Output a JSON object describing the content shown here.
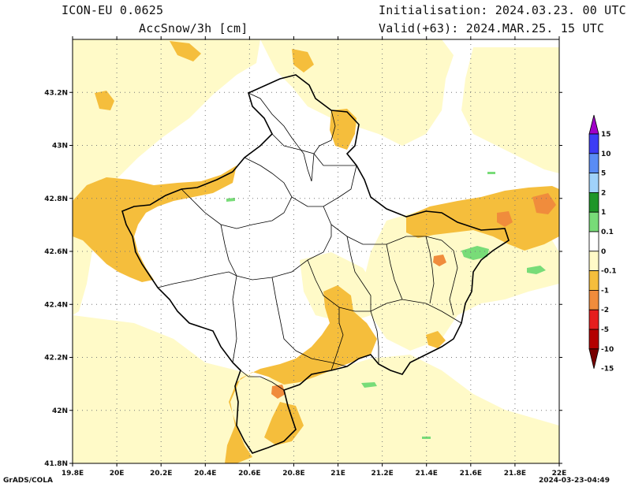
{
  "header": {
    "model": "ICON-EU 0.0625",
    "variable": "AccSnow/3h [cm]",
    "init": "Initialisation: 2024.03.23. 00 UTC",
    "valid": "Valid(+63): 2024.MAR.25. 15 UTC"
  },
  "footer": {
    "left": "GrADS/COLA",
    "right": "2024-03-23-04:49"
  },
  "axes": {
    "x_ticks": [
      {
        "value": 19.8,
        "label": "19.8E"
      },
      {
        "value": 20.0,
        "label": "20E"
      },
      {
        "value": 20.2,
        "label": "20.2E"
      },
      {
        "value": 20.4,
        "label": "20.4E"
      },
      {
        "value": 20.6,
        "label": "20.6E"
      },
      {
        "value": 20.8,
        "label": "20.8E"
      },
      {
        "value": 21.0,
        "label": "21E"
      },
      {
        "value": 21.2,
        "label": "21.2E"
      },
      {
        "value": 21.4,
        "label": "21.4E"
      },
      {
        "value": 21.6,
        "label": "21.6E"
      },
      {
        "value": 21.8,
        "label": "21.8E"
      },
      {
        "value": 22.0,
        "label": "22E"
      }
    ],
    "y_ticks": [
      {
        "value": 41.8,
        "label": "41.8N"
      },
      {
        "value": 42.0,
        "label": "42N"
      },
      {
        "value": 42.2,
        "label": "42.2N"
      },
      {
        "value": 42.4,
        "label": "42.4N"
      },
      {
        "value": 42.6,
        "label": "42.6N"
      },
      {
        "value": 42.8,
        "label": "42.8N"
      },
      {
        "value": 43.0,
        "label": "43N"
      },
      {
        "value": 43.2,
        "label": "43.2N"
      }
    ],
    "lon_range": [
      19.8,
      22.0
    ],
    "lat_range": [
      41.8,
      43.4
    ]
  },
  "colorbar": {
    "labels": [
      "15",
      "10",
      "5",
      "2",
      "1",
      "0.1",
      "0",
      "-0.1",
      "-1",
      "-2",
      "-5",
      "-10",
      "-15"
    ],
    "colors": [
      "#a000c8",
      "#3c3cf5",
      "#5a8cf5",
      "#a0d2fa",
      "#1e9628",
      "#78dc78",
      "#ffffff",
      "#fffac8",
      "#f5be3c",
      "#f08c3c",
      "#e61e1e",
      "#b40000",
      "#780000"
    ]
  }
}
